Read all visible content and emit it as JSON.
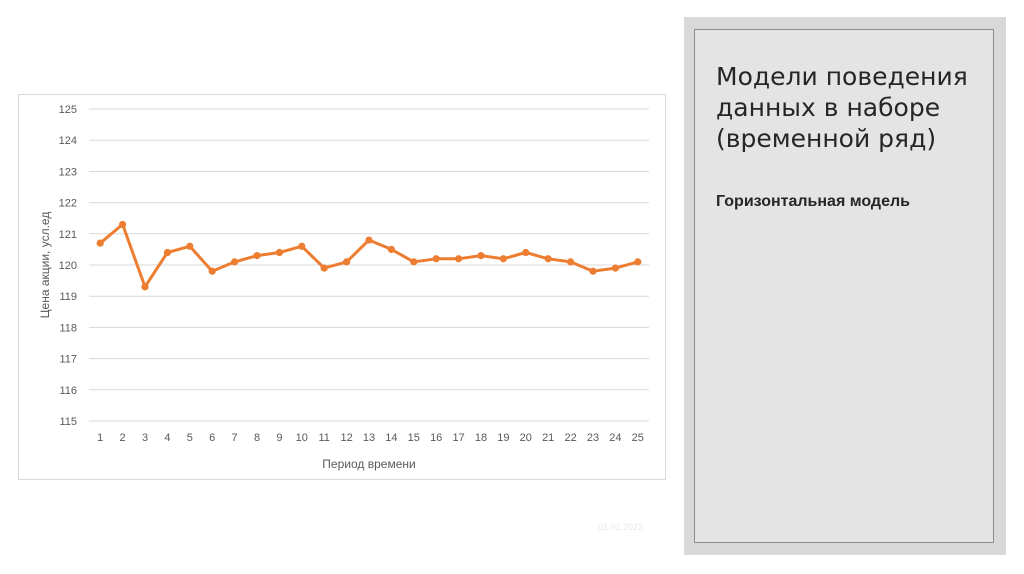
{
  "panel": {
    "title": "Модели поведения данных в наборе (временной ряд)",
    "subtitle": "Горизонтальная модель"
  },
  "footer": {
    "date": "01.01.2022"
  },
  "chart_data": {
    "type": "line",
    "title": "",
    "xlabel": "Период времени",
    "ylabel": "Цена акции, усл.ед",
    "ylim": [
      115,
      125
    ],
    "yticks": [
      115,
      116,
      117,
      118,
      119,
      120,
      121,
      122,
      123,
      124,
      125
    ],
    "grid": true,
    "legend": "none",
    "x": [
      1,
      2,
      3,
      4,
      5,
      6,
      7,
      8,
      9,
      10,
      11,
      12,
      13,
      14,
      15,
      16,
      17,
      18,
      19,
      20,
      21,
      22,
      23,
      24,
      25
    ],
    "series": [
      {
        "color": "#ed7d31",
        "values": [
          120.7,
          121.3,
          119.3,
          120.4,
          120.6,
          119.8,
          120.1,
          120.3,
          120.4,
          120.6,
          119.9,
          120.1,
          120.8,
          120.5,
          120.1,
          120.2,
          120.2,
          120.3,
          120.2,
          120.4,
          120.2,
          120.1,
          119.8,
          119.9,
          120.1
        ]
      }
    ],
    "colors": {
      "grid": "#d9d9d9",
      "text": "#595959"
    }
  }
}
